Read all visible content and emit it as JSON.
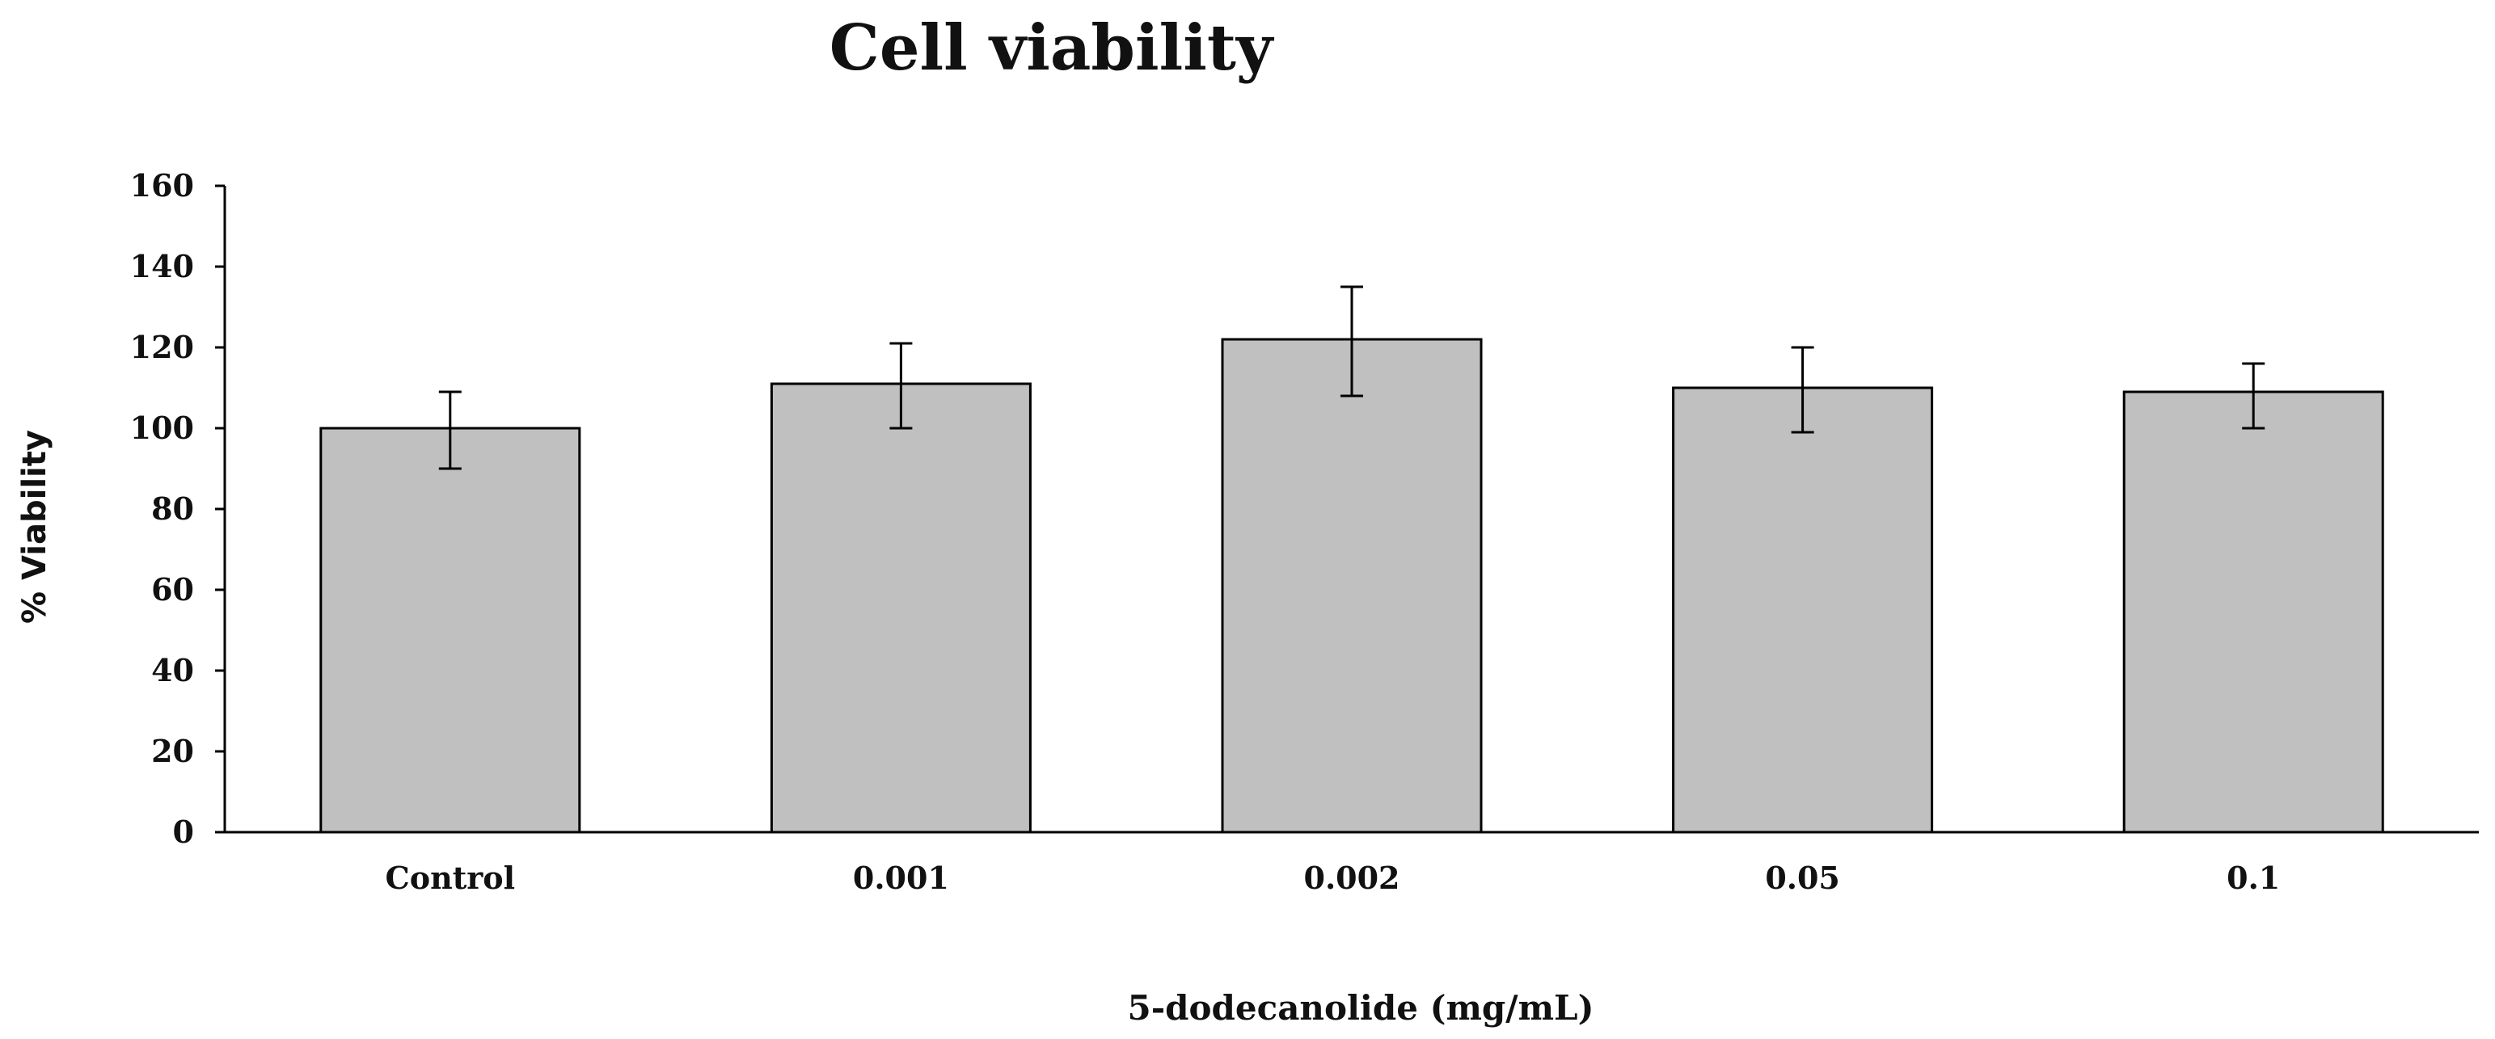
{
  "chart_data": {
    "type": "bar",
    "title": "Cell viability",
    "xlabel": "5-dodecanolide (mg/mL)",
    "ylabel": "% Viability",
    "categories": [
      "Control",
      "0.001",
      "0.002",
      "0.05",
      "0.1"
    ],
    "values": [
      100,
      111,
      122,
      110,
      109
    ],
    "error_bars": [
      {
        "low": 90,
        "high": 109
      },
      {
        "low": 100,
        "high": 121
      },
      {
        "low": 108,
        "high": 135
      },
      {
        "low": 99,
        "high": 120
      },
      {
        "low": 100,
        "high": 116
      }
    ],
    "ylim": [
      0,
      160
    ],
    "yticks": [
      0,
      20,
      40,
      60,
      80,
      100,
      120,
      140,
      160
    ],
    "grid": false,
    "bar_color": "#c0c0c0",
    "bar_edge_color": "#000000"
  }
}
